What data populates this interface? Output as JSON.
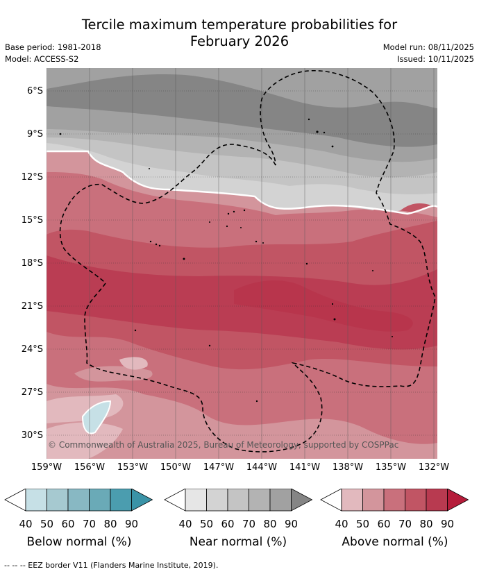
{
  "title_line1": "Tercile maximum temperature probabilities for",
  "title_line2": "February 2026",
  "base_period": "Base period: 1981-2018",
  "model": "Model: ACCESS-S2",
  "model_run": "Model run: 08/11/2025",
  "issued": "Issued: 10/11/2025",
  "lat_labels": [
    "6°S",
    "9°S",
    "12°S",
    "15°S",
    "18°S",
    "21°S",
    "24°S",
    "27°S",
    "30°S"
  ],
  "lon_labels": [
    "159°W",
    "156°W",
    "153°W",
    "150°W",
    "147°W",
    "144°W",
    "141°W",
    "138°W",
    "135°W",
    "132°W"
  ],
  "copyright": "© Commonwealth of Australia 2025, Bureau of Meteorology, supported by COSPPac",
  "colorbars": [
    {
      "label": "Below normal (%)",
      "ticks": [
        "40",
        "50",
        "60",
        "70",
        "80",
        "90"
      ],
      "colors": [
        "#ffffff",
        "#c6e0e6",
        "#a6c9d0",
        "#88b8c3",
        "#6aaab7",
        "#4b9daf",
        "#3a93a7"
      ]
    },
    {
      "label": "Near normal (%)",
      "ticks": [
        "40",
        "50",
        "60",
        "70",
        "80",
        "90"
      ],
      "colors": [
        "#ffffff",
        "#e6e6e6",
        "#d3d3d3",
        "#c4c4c4",
        "#b3b3b3",
        "#a1a1a1",
        "#858585"
      ]
    },
    {
      "label": "Above normal (%)",
      "ticks": [
        "40",
        "50",
        "60",
        "70",
        "80",
        "90"
      ],
      "colors": [
        "#ffffff",
        "#e2b9be",
        "#d3959c",
        "#c9707c",
        "#c15564",
        "#b83a50",
        "#b51c3a"
      ]
    }
  ],
  "footnote": "--  --  -- EEZ border V11 (Flanders Marine Institute, 2019)."
}
